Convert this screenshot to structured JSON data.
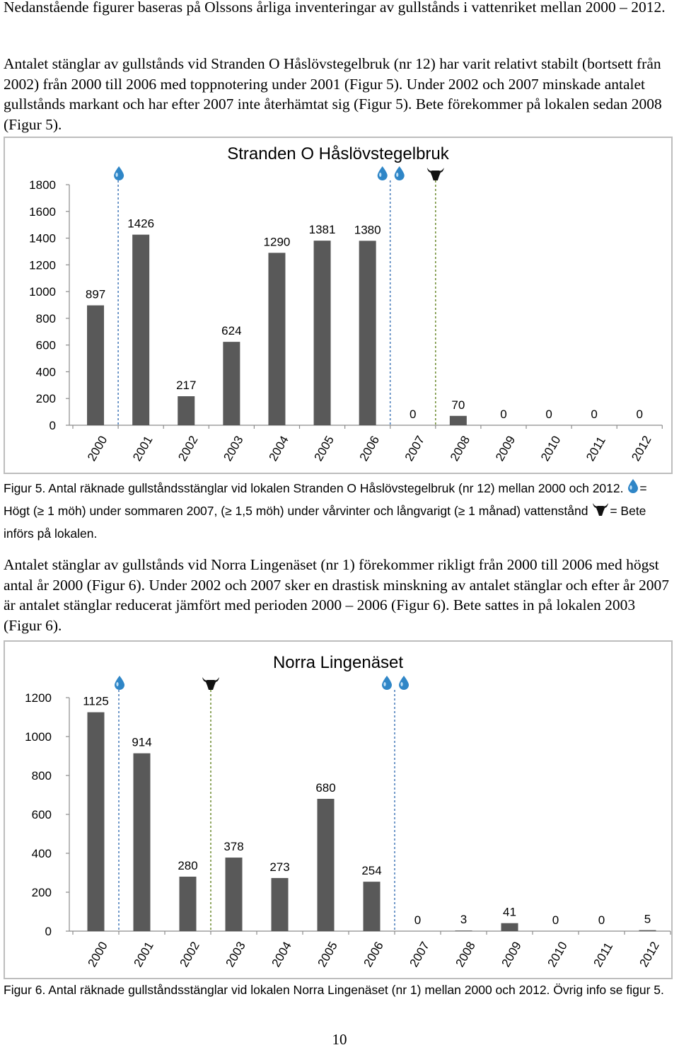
{
  "text": {
    "para1": "Nedanstående figurer baseras på Olssons årliga inventeringar av gullstånds i vattenriket mellan 2000 – 2012.",
    "para2": "Antalet stänglar av gullstånds vid Stranden O Håslövstegelbruk (nr 12) har varit relativt stabilt (bortsett från 2002) från 2000 till 2006 med toppnotering under 2001 (Figur 5). Under 2002 och 2007 minskade antalet gullstånds markant och har efter 2007 inte återhämtat sig (Figur 5). Bete förekommer på lokalen sedan 2008 (Figur 5).",
    "caption5_part1": "Figur 5. Antal räknade gullståndsstänglar vid lokalen Stranden O Håslövstegelbruk (nr 12) mellan 2000 och 2012.",
    "caption5_part2": "= Högt (≥ 1 möh) under sommaren 2007, (≥ 1,5 möh) under vårvinter och långvarigt (≥ 1 månad) vattenstånd",
    "caption5_part3": "= Bete införs på lokalen.",
    "para3": "Antalet stänglar av gullstånds vid Norra Lingenäset (nr 1) förekommer rikligt från 2000 till 2006 med högst antal år 2000 (Figur 6). Under 2002 och 2007 sker en drastisk minskning av antalet stänglar och efter år 2007 är antalet stänglar reducerat jämfört med perioden 2000 – 2006 (Figur 6). Bete sattes in på lokalen 2003 (Figur 6).",
    "caption6": "Figur 6. Antal räknade gullståndsstänglar vid lokalen Norra Lingenäset (nr 1) mellan 2000 och 2012. Övrig info se figur 5.",
    "page_number": "10"
  },
  "colors": {
    "bar": "#595959",
    "axis": "#8c8c8c",
    "water": "#2f86c7",
    "water_line": "#4f81bd",
    "graze_line": "#76923c",
    "cow": "#111111"
  },
  "chart_data": [
    {
      "type": "bar",
      "title": "Stranden O Håslövstegelbruk",
      "categories": [
        "2000",
        "2001",
        "2002",
        "2003",
        "2004",
        "2005",
        "2006",
        "2007",
        "2008",
        "2009",
        "2010",
        "2011",
        "2012"
      ],
      "values": [
        897,
        1426,
        217,
        624,
        1290,
        1381,
        1380,
        0,
        70,
        0,
        0,
        0,
        0
      ],
      "ylim": [
        0,
        1800
      ],
      "yticks": [
        0,
        200,
        400,
        600,
        800,
        1000,
        1200,
        1400,
        1600,
        1800
      ],
      "xlabel": "",
      "ylabel": "",
      "grid": false,
      "legend": "none",
      "markers": [
        {
          "type": "high-water",
          "year": "2001",
          "count": 1
        },
        {
          "type": "high-water",
          "year": "2007",
          "count": 2
        },
        {
          "type": "grazing",
          "year": "2008",
          "count": 1
        }
      ]
    },
    {
      "type": "bar",
      "title": "Norra Lingenäset",
      "categories": [
        "2000",
        "2001",
        "2002",
        "2003",
        "2004",
        "2005",
        "2006",
        "2007",
        "2008",
        "2009",
        "2010",
        "2011",
        "2012"
      ],
      "values": [
        1125,
        914,
        280,
        378,
        273,
        680,
        254,
        0,
        3,
        41,
        0,
        0,
        5
      ],
      "ylim": [
        0,
        1200
      ],
      "yticks": [
        0,
        200,
        400,
        600,
        800,
        1000,
        1200
      ],
      "xlabel": "",
      "ylabel": "",
      "grid": false,
      "legend": "none",
      "markers": [
        {
          "type": "high-water",
          "year": "2001",
          "count": 1
        },
        {
          "type": "grazing",
          "year": "2003",
          "count": 1
        },
        {
          "type": "high-water",
          "year": "2007",
          "count": 2
        }
      ]
    }
  ]
}
